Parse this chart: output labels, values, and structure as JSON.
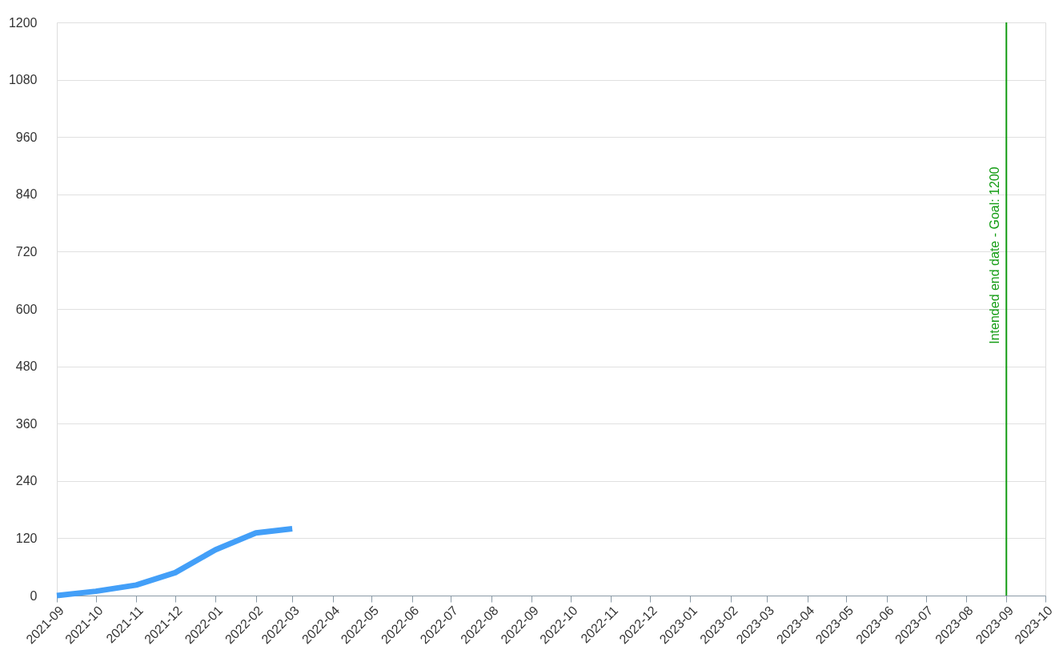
{
  "chart_data": {
    "type": "line",
    "x": [
      "2021-09",
      "2021-10",
      "2021-11",
      "2021-12",
      "2022-01",
      "2022-02",
      "2022-03"
    ],
    "series": [
      {
        "color": "#439ff8",
        "values": [
          0,
          9,
          22,
          48,
          96,
          131,
          140
        ]
      }
    ],
    "xlim": [
      "2021-09",
      "2023-10"
    ],
    "xticks": [
      "2021-09",
      "2021-10",
      "2021-11",
      "2021-12",
      "2022-01",
      "2022-02",
      "2022-03",
      "2022-04",
      "2022-05",
      "2022-06",
      "2022-07",
      "2022-08",
      "2022-09",
      "2022-10",
      "2022-11",
      "2022-12",
      "2023-01",
      "2023-02",
      "2023-03",
      "2023-04",
      "2023-05",
      "2023-06",
      "2023-07",
      "2023-08",
      "2023-09",
      "2023-10"
    ],
    "ylim": [
      0,
      1200
    ],
    "yticks": [
      0,
      120,
      240,
      360,
      480,
      600,
      720,
      840,
      960,
      1080,
      1200
    ],
    "grid": "y",
    "marker": "none",
    "line_style": "solid",
    "ref_lines": [
      {
        "axis": "x",
        "value": "2023-09",
        "label": "Intended end date - Goal: 1200",
        "color": "#139c13"
      }
    ]
  }
}
